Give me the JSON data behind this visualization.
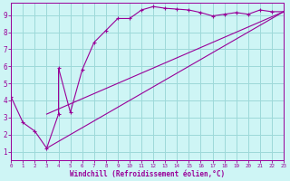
{
  "xlabel": "Windchill (Refroidissement éolien,°C)",
  "background_color": "#cef5f5",
  "grid_color": "#9dd9d9",
  "line_color": "#990099",
  "xlim": [
    0,
    23
  ],
  "ylim": [
    0.5,
    9.7
  ],
  "xticks": [
    0,
    1,
    2,
    3,
    4,
    5,
    6,
    7,
    8,
    9,
    10,
    11,
    12,
    13,
    14,
    15,
    16,
    17,
    18,
    19,
    20,
    21,
    22,
    23
  ],
  "yticks": [
    1,
    2,
    3,
    4,
    5,
    6,
    7,
    8,
    9
  ],
  "curve1_x": [
    0,
    1,
    2,
    3,
    4,
    4,
    5,
    6,
    7,
    8,
    9,
    10,
    11,
    12,
    13,
    14,
    15,
    16,
    17,
    18,
    19,
    20,
    21,
    22,
    23
  ],
  "curve1_y": [
    4.2,
    2.7,
    2.2,
    1.2,
    3.2,
    5.9,
    3.3,
    5.8,
    7.4,
    8.1,
    8.8,
    8.8,
    9.3,
    9.5,
    9.4,
    9.35,
    9.3,
    9.15,
    8.95,
    9.05,
    9.15,
    9.05,
    9.3,
    9.2,
    9.2
  ],
  "curve2_x": [
    3,
    23
  ],
  "curve2_y": [
    1.2,
    9.2
  ],
  "curve3_x": [
    3,
    23
  ],
  "curve3_y": [
    3.2,
    9.2
  ],
  "marker": "+"
}
